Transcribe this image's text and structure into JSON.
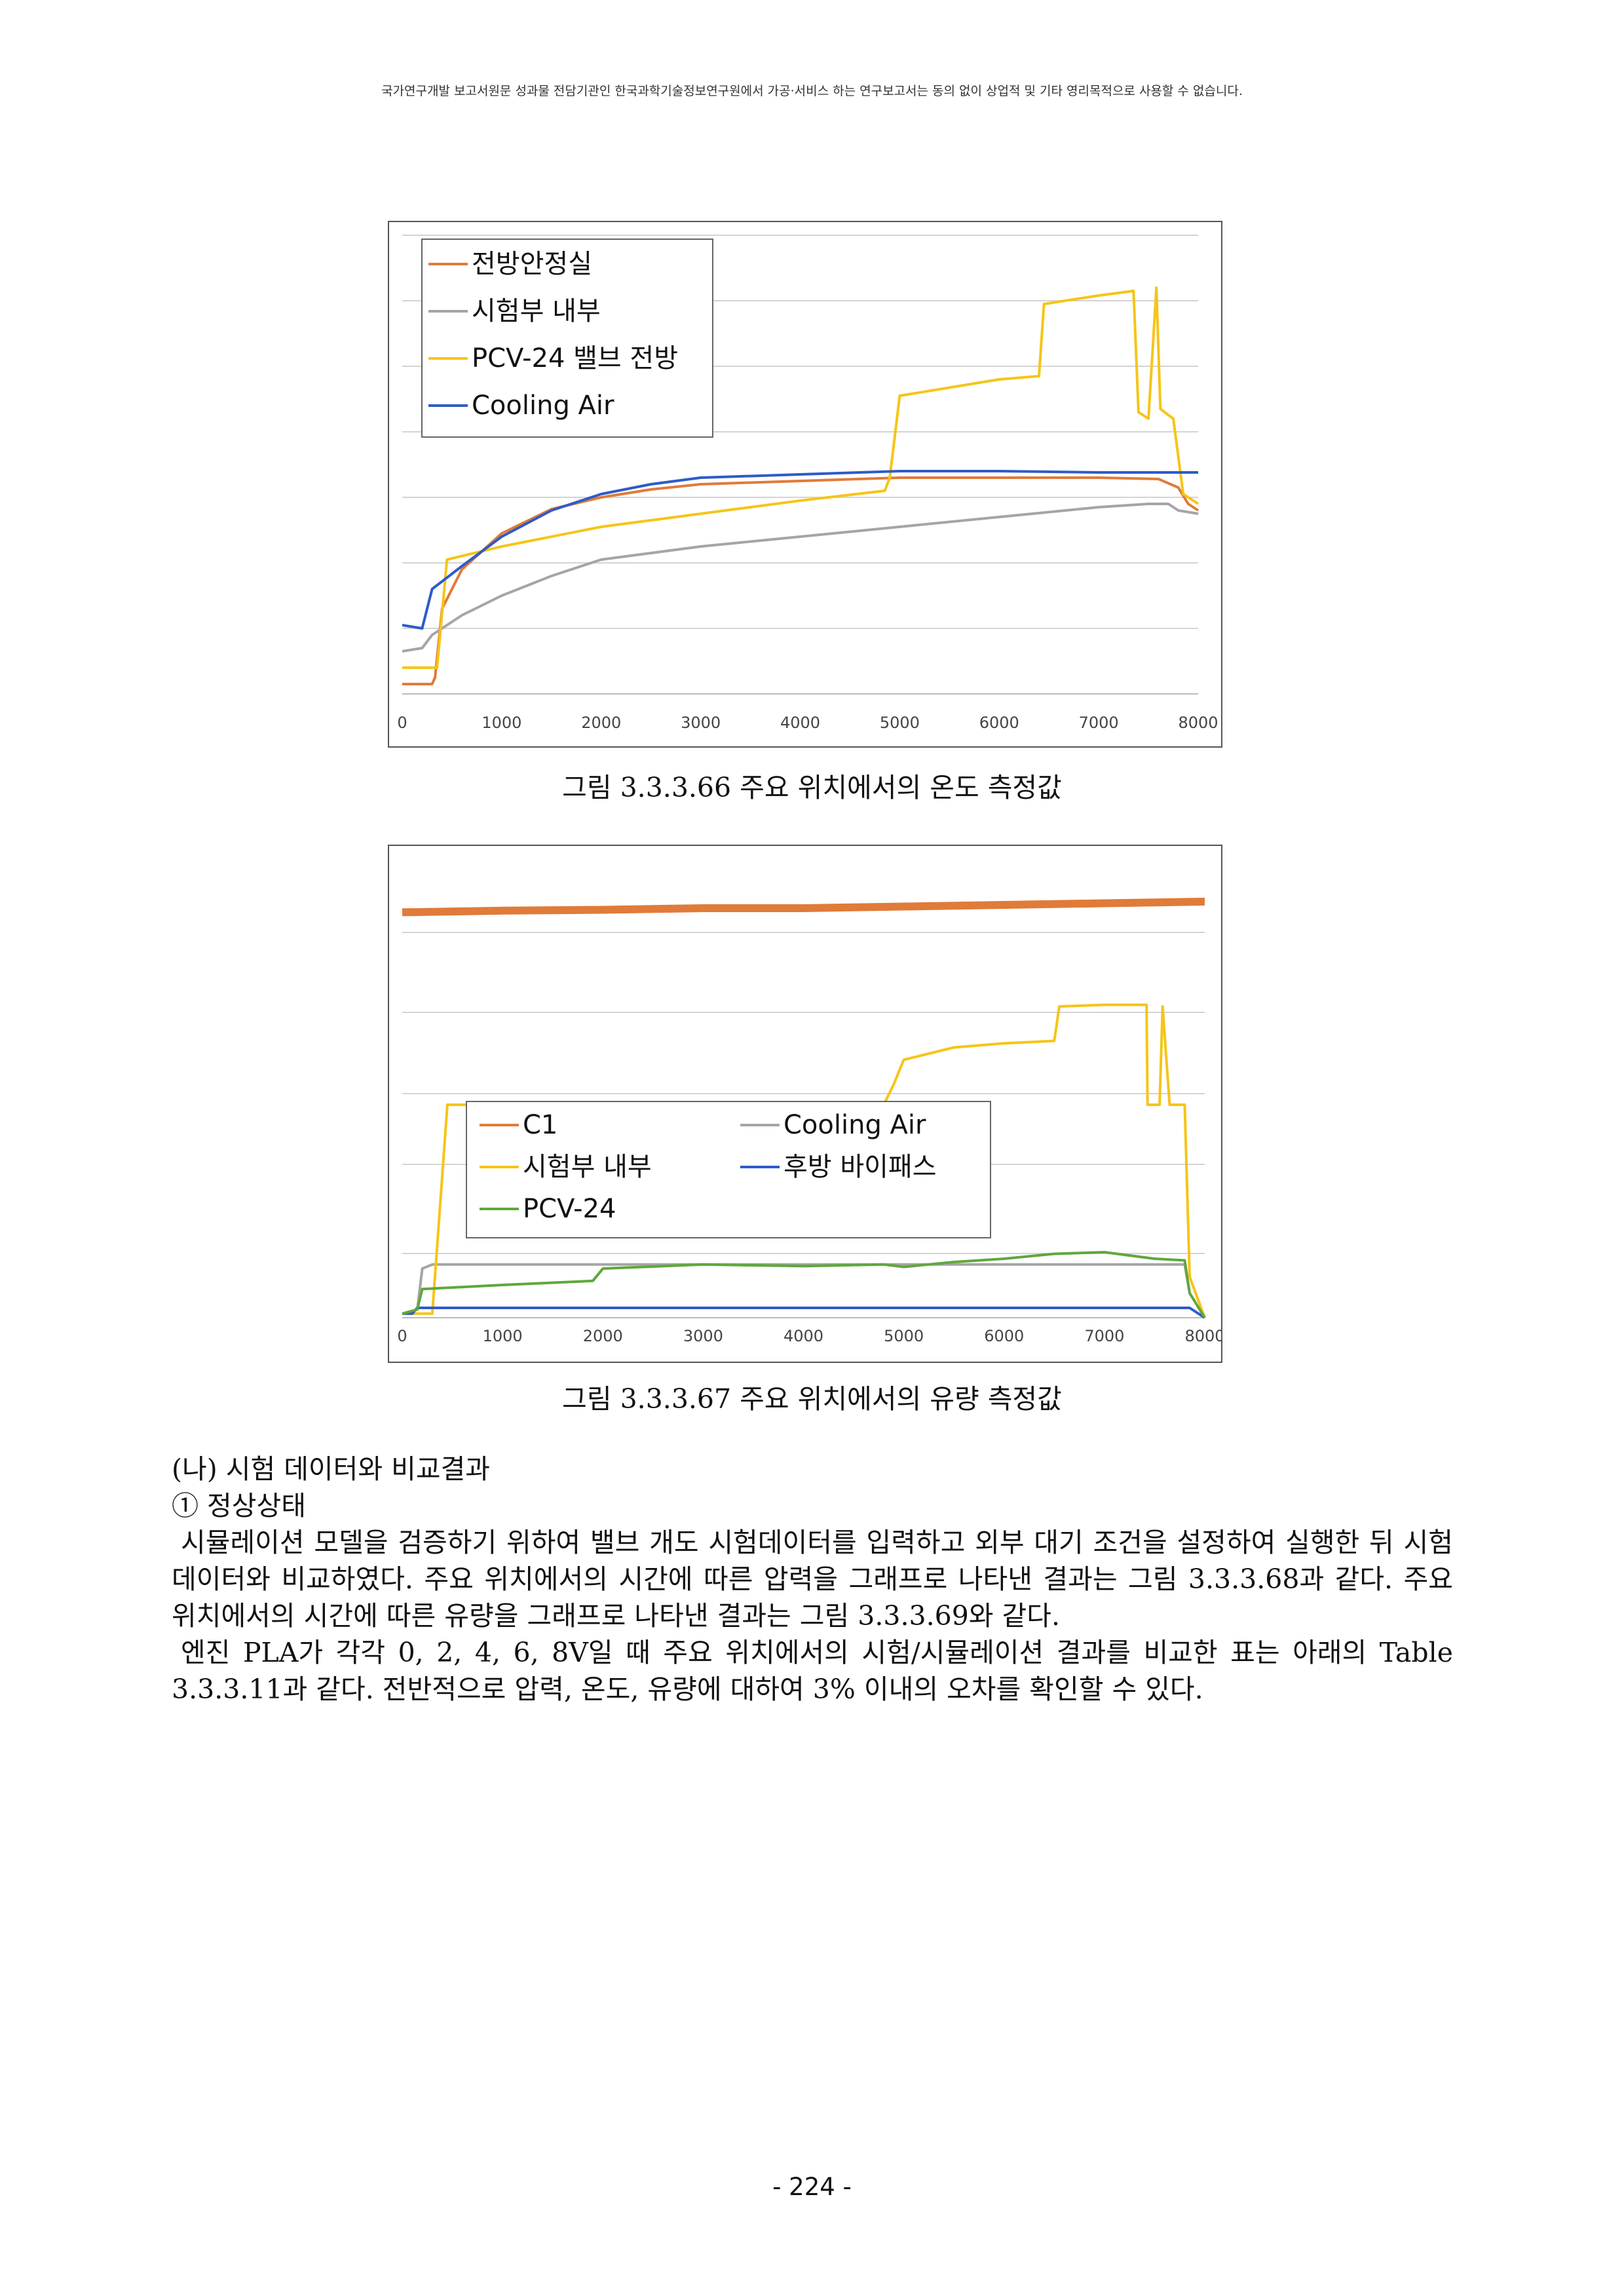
{
  "header_note": "국가연구개발 보고서원문 성과물 전담기관인 한국과학기술정보연구원에서 가공·서비스 하는 연구보고서는 동의 없이 상업적 및 기타 영리목적으로 사용할 수 없습니다.",
  "figure1": {
    "caption": "그림 3.3.3.66 주요 위치에서의 온도 측정값"
  },
  "figure2": {
    "caption": "그림 3.3.3.67 주요 위치에서의 유량 측정값"
  },
  "body": {
    "heading_na": "(나) 시험 데이터와 비교결과",
    "heading_1": "① 정상상태",
    "para1": "시뮬레이션 모델을 검증하기 위하여 밸브 개도 시험데이터를 입력하고 외부 대기 조건을 설정하여 실행한 뒤 시험 데이터와 비교하였다. 주요 위치에서의 시간에 따른 압력을 그래프로 나타낸 결과는 그림 3.3.3.68과 같다. 주요 위치에서의 시간에 따른 유량을 그래프로 나타낸 결과는 그림 3.3.3.69와 같다.",
    "para2": "엔진 PLA가 각각 0, 2, 4, 6, 8V일 때 주요 위치에서의 시험/시뮬레이션 결과를 비교한 표는 아래의 Table 3.3.3.11과 같다. 전반적으로 압력, 온도, 유량에 대하여 3% 이내의 오차를 확인할 수 있다."
  },
  "page_number": "- 224 -",
  "chart_data": [
    {
      "type": "line",
      "x_ticks": [
        "0",
        "1000",
        "2000",
        "3000",
        "4000",
        "5000",
        "6000",
        "7000",
        "8000"
      ],
      "xlim": [
        0,
        8000
      ],
      "ylim": [
        0,
        7
      ],
      "y_tick_labels": [],
      "grid": true,
      "legend_position": "top-left",
      "series": [
        {
          "name": "전방안정실",
          "color": "#E07B39",
          "points": [
            [
              0,
              0.15
            ],
            [
              300,
              0.15
            ],
            [
              330,
              0.25
            ],
            [
              400,
              1.3
            ],
            [
              600,
              1.9
            ],
            [
              1000,
              2.45
            ],
            [
              1500,
              2.82
            ],
            [
              2000,
              3.0
            ],
            [
              2500,
              3.12
            ],
            [
              3000,
              3.2
            ],
            [
              4000,
              3.25
            ],
            [
              5000,
              3.3
            ],
            [
              6000,
              3.3
            ],
            [
              7000,
              3.3
            ],
            [
              7600,
              3.28
            ],
            [
              7800,
              3.15
            ],
            [
              7900,
              2.9
            ],
            [
              8000,
              2.8
            ]
          ]
        },
        {
          "name": "시험부 내부",
          "color": "#A5A5A5",
          "points": [
            [
              0,
              0.65
            ],
            [
              200,
              0.7
            ],
            [
              300,
              0.9
            ],
            [
              600,
              1.2
            ],
            [
              1000,
              1.5
            ],
            [
              1500,
              1.8
            ],
            [
              2000,
              2.05
            ],
            [
              3000,
              2.25
            ],
            [
              4000,
              2.4
            ],
            [
              5000,
              2.55
            ],
            [
              6000,
              2.7
            ],
            [
              7000,
              2.85
            ],
            [
              7500,
              2.9
            ],
            [
              7700,
              2.9
            ],
            [
              7800,
              2.8
            ],
            [
              8000,
              2.75
            ]
          ]
        },
        {
          "name": "PCV-24 밸브 전방",
          "color": "#F5C518",
          "points": [
            [
              0,
              0.4
            ],
            [
              350,
              0.4
            ],
            [
              450,
              2.05
            ],
            [
              1000,
              2.25
            ],
            [
              2000,
              2.55
            ],
            [
              3000,
              2.75
            ],
            [
              4000,
              2.95
            ],
            [
              4850,
              3.1
            ],
            [
              4900,
              3.3
            ],
            [
              5000,
              4.55
            ],
            [
              6000,
              4.8
            ],
            [
              6400,
              4.85
            ],
            [
              6450,
              5.95
            ],
            [
              7000,
              6.08
            ],
            [
              7350,
              6.15
            ],
            [
              7400,
              4.3
            ],
            [
              7500,
              4.2
            ],
            [
              7580,
              6.2
            ],
            [
              7620,
              4.35
            ],
            [
              7750,
              4.2
            ],
            [
              7850,
              3.05
            ],
            [
              8000,
              2.9
            ]
          ]
        },
        {
          "name": "Cooling Air",
          "color": "#2E5BC8",
          "points": [
            [
              0,
              1.05
            ],
            [
              200,
              1.0
            ],
            [
              300,
              1.6
            ],
            [
              600,
              1.95
            ],
            [
              1000,
              2.4
            ],
            [
              1500,
              2.8
            ],
            [
              2000,
              3.05
            ],
            [
              2500,
              3.2
            ],
            [
              3000,
              3.3
            ],
            [
              4000,
              3.35
            ],
            [
              5000,
              3.4
            ],
            [
              6000,
              3.4
            ],
            [
              7000,
              3.38
            ],
            [
              8000,
              3.38
            ]
          ]
        }
      ]
    },
    {
      "type": "line",
      "x_ticks": [
        "0",
        "1000",
        "2000",
        "3000",
        "4000",
        "5000",
        "6000",
        "7000",
        "8000"
      ],
      "xlim": [
        0,
        8000
      ],
      "ylim": [
        0,
        5.6
      ],
      "y_tick_labels": [],
      "grid": true,
      "legend_position": "center",
      "series": [
        {
          "name": "C1",
          "color": "#E07B39",
          "points": [
            [
              0,
              4.95
            ],
            [
              1000,
              4.97
            ],
            [
              2000,
              4.98
            ],
            [
              3000,
              5.0
            ],
            [
              4000,
              5.0
            ],
            [
              5000,
              5.02
            ],
            [
              6000,
              5.04
            ],
            [
              7000,
              5.06
            ],
            [
              8000,
              5.08
            ]
          ]
        },
        {
          "name": "Cooling Air",
          "color": "#A5A5A5",
          "points": [
            [
              0,
              0.05
            ],
            [
              150,
              0.1
            ],
            [
              200,
              0.6
            ],
            [
              300,
              0.65
            ],
            [
              1000,
              0.65
            ],
            [
              2000,
              0.65
            ],
            [
              3000,
              0.65
            ],
            [
              4000,
              0.65
            ],
            [
              5000,
              0.65
            ],
            [
              6000,
              0.65
            ],
            [
              7000,
              0.65
            ],
            [
              7800,
              0.65
            ],
            [
              7850,
              0.3
            ],
            [
              8000,
              0.0
            ]
          ]
        },
        {
          "name": "시험부 내부",
          "color": "#F5C518",
          "points": [
            [
              0,
              0.05
            ],
            [
              300,
              0.05
            ],
            [
              450,
              2.6
            ],
            [
              1000,
              2.6
            ],
            [
              2000,
              2.6
            ],
            [
              3000,
              2.6
            ],
            [
              4000,
              2.6
            ],
            [
              4800,
              2.6
            ],
            [
              4900,
              2.85
            ],
            [
              5000,
              3.15
            ],
            [
              5500,
              3.3
            ],
            [
              6000,
              3.35
            ],
            [
              6500,
              3.38
            ],
            [
              6550,
              3.8
            ],
            [
              7000,
              3.82
            ],
            [
              7420,
              3.82
            ],
            [
              7430,
              2.6
            ],
            [
              7550,
              2.6
            ],
            [
              7580,
              3.8
            ],
            [
              7650,
              2.6
            ],
            [
              7800,
              2.6
            ],
            [
              7850,
              0.5
            ],
            [
              8000,
              0.0
            ]
          ]
        },
        {
          "name": "후방 바이패스",
          "color": "#2E5BC8",
          "points": [
            [
              0,
              0.05
            ],
            [
              100,
              0.05
            ],
            [
              150,
              0.12
            ],
            [
              1000,
              0.12
            ],
            [
              2000,
              0.12
            ],
            [
              3000,
              0.12
            ],
            [
              4000,
              0.12
            ],
            [
              5000,
              0.12
            ],
            [
              6000,
              0.12
            ],
            [
              7000,
              0.12
            ],
            [
              7850,
              0.12
            ],
            [
              8000,
              0.0
            ]
          ]
        },
        {
          "name": "PCV-24",
          "color": "#5FA83C",
          "points": [
            [
              0,
              0.05
            ],
            [
              150,
              0.1
            ],
            [
              200,
              0.35
            ],
            [
              1000,
              0.4
            ],
            [
              1900,
              0.45
            ],
            [
              2000,
              0.6
            ],
            [
              3000,
              0.65
            ],
            [
              4000,
              0.63
            ],
            [
              4800,
              0.65
            ],
            [
              5000,
              0.62
            ],
            [
              5500,
              0.68
            ],
            [
              6000,
              0.72
            ],
            [
              6500,
              0.78
            ],
            [
              7000,
              0.8
            ],
            [
              7500,
              0.72
            ],
            [
              7800,
              0.7
            ],
            [
              7850,
              0.3
            ],
            [
              8000,
              0.0
            ]
          ]
        }
      ]
    }
  ]
}
